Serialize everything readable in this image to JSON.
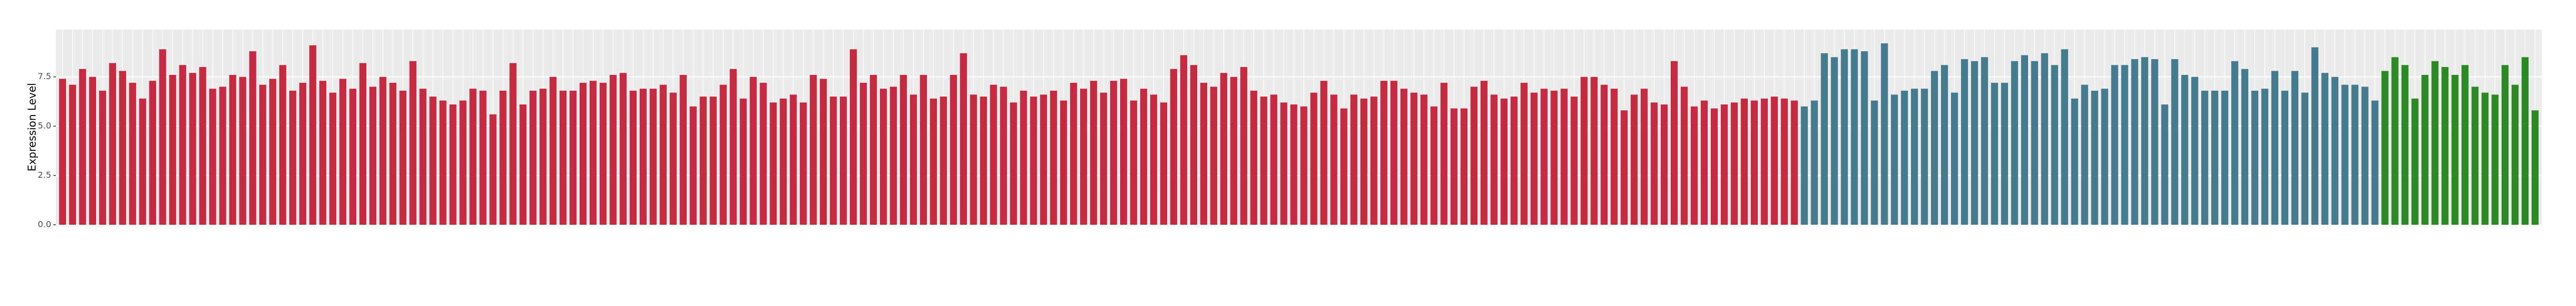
{
  "chart_data": {
    "type": "bar",
    "ylabel": "Expression Level",
    "ylim": [
      0,
      9.9
    ],
    "yticks": [
      {
        "value": 0,
        "label": "0.0"
      },
      {
        "value": 2.5,
        "label": "2.5"
      },
      {
        "value": 5,
        "label": "5.0"
      },
      {
        "value": 7.5,
        "label": "7.5"
      }
    ],
    "grid": true,
    "categories": [
      null,
      null,
      null,
      null,
      null,
      null,
      null,
      null,
      null,
      null,
      null,
      null,
      null,
      null,
      null,
      null,
      null,
      null,
      null,
      null,
      null,
      null,
      null,
      null,
      null,
      null,
      null,
      null,
      null,
      null,
      null,
      null,
      null,
      null,
      null,
      null,
      null,
      null,
      null,
      null,
      null,
      null,
      null,
      null,
      null,
      null,
      null,
      null,
      null,
      null,
      null,
      null,
      null,
      null,
      null,
      null,
      null,
      null,
      null,
      null,
      null,
      null,
      null,
      null,
      null,
      null,
      null,
      null,
      null,
      null,
      null,
      null,
      null,
      null,
      null,
      null,
      null,
      null,
      null,
      null,
      null,
      null,
      null,
      null,
      null,
      null,
      null,
      null,
      null,
      null,
      null,
      null,
      null,
      null,
      null,
      null,
      null,
      null,
      null,
      null,
      null,
      null,
      null,
      null,
      null,
      null,
      null,
      null,
      null,
      null,
      null,
      null,
      null,
      null,
      null,
      null,
      null,
      null,
      null,
      null,
      null,
      null,
      null,
      null,
      null,
      null,
      null,
      null,
      null,
      null,
      null,
      null,
      null,
      null,
      null,
      null,
      null,
      null,
      null,
      null,
      null,
      null,
      null,
      null,
      null,
      null,
      null,
      null,
      null,
      null,
      null,
      null,
      null,
      null,
      null,
      null,
      null,
      null,
      null,
      null,
      null,
      null,
      null,
      null,
      null,
      null,
      null,
      null,
      null,
      null,
      null,
      null,
      null,
      null,
      null,
      null,
      null,
      null,
      null,
      null,
      null,
      null,
      null,
      null,
      null,
      null,
      null,
      null,
      null,
      null,
      null,
      null,
      null,
      null,
      null,
      null,
      null,
      null,
      null,
      null,
      null,
      null,
      null,
      null,
      null,
      null,
      null,
      null,
      null,
      null,
      null,
      null,
      null,
      null,
      null,
      null,
      null,
      null,
      null,
      null,
      null,
      null,
      null,
      null,
      null,
      null,
      null,
      null,
      null,
      null,
      null,
      null,
      null,
      null,
      null,
      null,
      null,
      null,
      null,
      null,
      null,
      null,
      null,
      null,
      null,
      null,
      null,
      null
    ],
    "values": [
      7.4,
      7.1,
      7.9,
      7.5,
      6.8,
      8.2,
      7.8,
      7.2,
      6.4,
      7.3,
      8.9,
      7.6,
      8.1,
      7.7,
      8.0,
      6.9,
      7.0,
      7.6,
      7.5,
      8.8,
      7.1,
      7.4,
      8.1,
      6.8,
      7.2,
      9.1,
      7.3,
      6.7,
      7.4,
      6.9,
      8.2,
      7.0,
      7.5,
      7.2,
      6.8,
      8.3,
      6.9,
      6.5,
      6.3,
      6.1,
      6.3,
      6.9,
      6.8,
      5.6,
      6.8,
      8.2,
      6.1,
      6.8,
      6.9,
      7.5,
      6.8,
      6.8,
      7.2,
      7.3,
      7.2,
      7.6,
      7.7,
      6.8,
      6.9,
      6.9,
      7.1,
      6.7,
      7.6,
      6.0,
      6.5,
      6.5,
      7.1,
      7.9,
      6.4,
      7.5,
      7.2,
      6.2,
      6.4,
      6.6,
      6.2,
      7.6,
      7.4,
      6.5,
      6.5,
      8.9,
      7.2,
      7.6,
      6.9,
      7.0,
      7.6,
      6.6,
      7.6,
      6.4,
      6.5,
      7.6,
      8.7,
      6.6,
      6.5,
      7.1,
      7.0,
      6.2,
      6.8,
      6.5,
      6.6,
      6.8,
      6.3,
      7.2,
      6.9,
      7.3,
      6.7,
      7.3,
      7.4,
      6.3,
      6.9,
      6.6,
      6.2,
      7.9,
      8.6,
      8.1,
      7.2,
      7.0,
      7.7,
      7.5,
      8.0,
      6.8,
      6.5,
      6.6,
      6.2,
      6.1,
      6.0,
      6.7,
      7.3,
      6.6,
      5.9,
      6.6,
      6.4,
      6.5,
      7.3,
      7.3,
      6.9,
      6.7,
      6.6,
      6.0,
      7.2,
      5.9,
      5.9,
      7.0,
      7.3,
      6.6,
      6.4,
      6.5,
      7.2,
      6.7,
      6.9,
      6.8,
      6.9,
      6.5,
      7.5,
      7.5,
      7.1,
      6.9,
      5.8,
      6.6,
      6.9,
      6.2,
      6.1,
      8.3,
      7.0,
      6.0,
      6.3,
      5.9,
      6.1,
      6.2,
      6.4,
      6.3,
      6.4,
      6.5,
      6.4,
      6.3,
      6.0,
      6.3,
      8.7,
      8.5,
      8.9,
      8.9,
      8.8,
      6.3,
      9.2,
      6.6,
      6.8,
      6.9,
      6.9,
      7.8,
      8.1,
      6.7,
      8.4,
      8.3,
      8.5,
      7.2,
      7.2,
      8.3,
      8.6,
      8.3,
      8.7,
      8.1,
      8.9,
      6.4,
      7.1,
      6.8,
      6.9,
      8.1,
      8.1,
      8.4,
      8.5,
      8.4,
      6.1,
      8.4,
      7.6,
      7.5,
      6.8,
      6.8,
      6.8,
      8.3,
      7.9,
      6.8,
      6.9,
      7.8,
      6.8,
      7.8,
      6.7,
      9.0,
      7.7,
      7.5,
      7.1,
      7.1,
      7.0,
      6.3,
      7.8,
      8.5,
      8.1,
      6.4,
      7.6,
      8.3,
      8.0,
      7.6,
      8.1,
      7.0,
      6.7,
      6.6,
      8.1,
      7.1,
      8.5,
      5.8
    ],
    "colors": [
      "#c62a41",
      "#c62a41",
      "#c62a41",
      "#c62a41",
      "#c62a41",
      "#c62a41",
      "#c62a41",
      "#c62a41",
      "#c62a41",
      "#c62a41",
      "#c62a41",
      "#c62a41",
      "#c62a41",
      "#c62a41",
      "#c62a41",
      "#c62a41",
      "#c62a41",
      "#c62a41",
      "#c62a41",
      "#c62a41",
      "#c62a41",
      "#c62a41",
      "#c62a41",
      "#c62a41",
      "#c62a41",
      "#c62a41",
      "#c62a41",
      "#c62a41",
      "#c62a41",
      "#c62a41",
      "#c62a41",
      "#c62a41",
      "#c62a41",
      "#c62a41",
      "#c62a41",
      "#c62a41",
      "#c62a41",
      "#c62a41",
      "#c62a41",
      "#c62a41",
      "#c62a41",
      "#c62a41",
      "#c62a41",
      "#c62a41",
      "#c62a41",
      "#c62a41",
      "#c62a41",
      "#c62a41",
      "#c62a41",
      "#c62a41",
      "#c62a41",
      "#c62a41",
      "#c62a41",
      "#c62a41",
      "#c62a41",
      "#c62a41",
      "#c62a41",
      "#c62a41",
      "#c62a41",
      "#c62a41",
      "#c62a41",
      "#c62a41",
      "#c62a41",
      "#c62a41",
      "#c62a41",
      "#c62a41",
      "#c62a41",
      "#c62a41",
      "#c62a41",
      "#c62a41",
      "#c62a41",
      "#c62a41",
      "#c62a41",
      "#c62a41",
      "#c62a41",
      "#c62a41",
      "#c62a41",
      "#c62a41",
      "#c62a41",
      "#c62a41",
      "#c62a41",
      "#c62a41",
      "#c62a41",
      "#c62a41",
      "#c62a41",
      "#c62a41",
      "#c62a41",
      "#c62a41",
      "#c62a41",
      "#c62a41",
      "#c62a41",
      "#c62a41",
      "#c62a41",
      "#c62a41",
      "#c62a41",
      "#c62a41",
      "#c62a41",
      "#c62a41",
      "#c62a41",
      "#c62a41",
      "#c62a41",
      "#c62a41",
      "#c62a41",
      "#c62a41",
      "#c62a41",
      "#c62a41",
      "#c62a41",
      "#c62a41",
      "#c62a41",
      "#c62a41",
      "#c62a41",
      "#c62a41",
      "#c62a41",
      "#c62a41",
      "#c62a41",
      "#c62a41",
      "#c62a41",
      "#c62a41",
      "#c62a41",
      "#c62a41",
      "#c62a41",
      "#c62a41",
      "#c62a41",
      "#c62a41",
      "#c62a41",
      "#c62a41",
      "#c62a41",
      "#c62a41",
      "#c62a41",
      "#c62a41",
      "#c62a41",
      "#c62a41",
      "#c62a41",
      "#c62a41",
      "#c62a41",
      "#c62a41",
      "#c62a41",
      "#c62a41",
      "#c62a41",
      "#c62a41",
      "#c62a41",
      "#c62a41",
      "#c62a41",
      "#c62a41",
      "#c62a41",
      "#c62a41",
      "#c62a41",
      "#c62a41",
      "#c62a41",
      "#c62a41",
      "#c62a41",
      "#c62a41",
      "#c62a41",
      "#c62a41",
      "#c62a41",
      "#c62a41",
      "#c62a41",
      "#c62a41",
      "#c62a41",
      "#c62a41",
      "#c62a41",
      "#c62a41",
      "#c62a41",
      "#c62a41",
      "#c62a41",
      "#c62a41",
      "#c62a41",
      "#c62a41",
      "#c62a41",
      "#c62a41",
      "#c62a41",
      "#c62a41",
      "#c62a41",
      "#c62a41",
      "#457b8e",
      "#457b8e",
      "#457b8e",
      "#457b8e",
      "#457b8e",
      "#457b8e",
      "#457b8e",
      "#457b8e",
      "#457b8e",
      "#457b8e",
      "#457b8e",
      "#457b8e",
      "#457b8e",
      "#457b8e",
      "#457b8e",
      "#457b8e",
      "#457b8e",
      "#457b8e",
      "#457b8e",
      "#457b8e",
      "#457b8e",
      "#457b8e",
      "#457b8e",
      "#457b8e",
      "#457b8e",
      "#457b8e",
      "#457b8e",
      "#457b8e",
      "#457b8e",
      "#457b8e",
      "#457b8e",
      "#457b8e",
      "#457b8e",
      "#457b8e",
      "#457b8e",
      "#457b8e",
      "#457b8e",
      "#457b8e",
      "#457b8e",
      "#457b8e",
      "#457b8e",
      "#457b8e",
      "#457b8e",
      "#457b8e",
      "#457b8e",
      "#457b8e",
      "#457b8e",
      "#457b8e",
      "#457b8e",
      "#457b8e",
      "#457b8e",
      "#457b8e",
      "#457b8e",
      "#457b8e",
      "#457b8e",
      "#457b8e",
      "#457b8e",
      "#457b8e",
      "#2b8a24",
      "#2b8a24",
      "#2b8a24",
      "#2b8a24",
      "#2b8a24",
      "#2b8a24",
      "#2b8a24",
      "#2b8a24",
      "#2b8a24",
      "#2b8a24",
      "#2b8a24",
      "#2b8a24",
      "#2b8a24",
      "#2b8a24",
      "#2b8a24",
      "#2b8a24"
    ]
  }
}
